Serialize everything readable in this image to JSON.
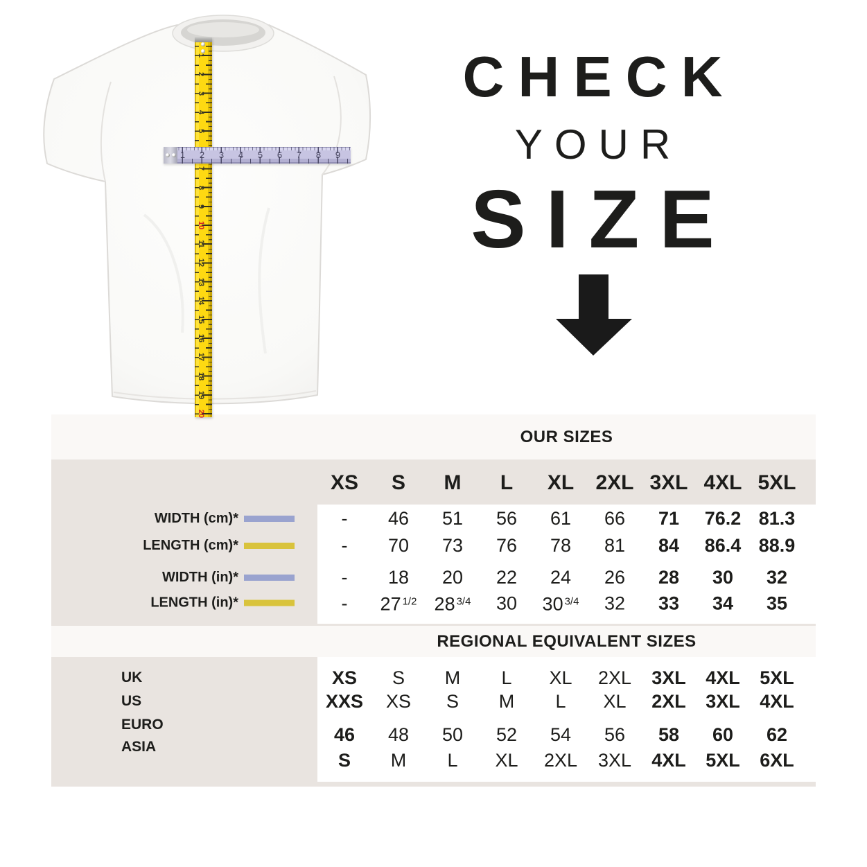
{
  "colors": {
    "text": "#1d1d1b",
    "panel_beige": "#e9e4e0",
    "band_light": "#faf8f6",
    "white": "#ffffff",
    "swatch_lavender": "#9aa3cf",
    "swatch_yellow": "#d9c33c",
    "tape_yellow": "#fed912",
    "ruler_lavender": "#c7c4e2",
    "tape_red_number": "#d42b26",
    "arrow_black": "#1a1a1a"
  },
  "headline": {
    "line1": "CHECK",
    "line2": "YOUR",
    "line3": "SIZE"
  },
  "tshirt_diagram": {
    "vertical_tape": {
      "numbers": [
        "1",
        "2",
        "3",
        "4",
        "5",
        "6",
        "7",
        "8",
        "9",
        "10",
        "11",
        "12",
        "13",
        "14",
        "15",
        "16",
        "17",
        "18",
        "19",
        "20"
      ],
      "red_numbers": [
        "10",
        "20"
      ]
    },
    "horizontal_ruler": {
      "numbers": [
        "1",
        "2",
        "3",
        "4",
        "5",
        "6",
        "7",
        "8",
        "9"
      ]
    }
  },
  "size_table": {
    "our_sizes_title": "OUR SIZES",
    "regional_title": "REGIONAL EQUIVALENT SIZES",
    "columns": [
      "XS",
      "S",
      "M",
      "L",
      "XL",
      "2XL",
      "3XL",
      "4XL",
      "5XL"
    ],
    "measurement_rows": [
      {
        "label": "WIDTH (cm)*",
        "swatch_color": "#9aa3cf",
        "values": [
          "-",
          "46",
          "51",
          "56",
          "61",
          "66",
          "71",
          "76.2",
          "81.3"
        ]
      },
      {
        "label": "LENGTH (cm)*",
        "swatch_color": "#d9c33c",
        "values": [
          "-",
          "70",
          "73",
          "76",
          "78",
          "81",
          "84",
          "86.4",
          "88.9"
        ]
      },
      {
        "label": "WIDTH (in)*",
        "swatch_color": "#9aa3cf",
        "values": [
          "-",
          "18",
          "20",
          "22",
          "24",
          "26",
          "28",
          "30",
          "32"
        ]
      },
      {
        "label": "LENGTH (in)*",
        "swatch_color": "#d9c33c",
        "values": [
          "-",
          "27 1/2",
          "28 3/4",
          "30",
          "30 3/4",
          "32",
          "33",
          "34",
          "35"
        ]
      }
    ],
    "regional_rows": [
      {
        "label": "UK",
        "values": [
          "XS",
          "S",
          "M",
          "L",
          "XL",
          "2XL",
          "3XL",
          "4XL",
          "5XL"
        ]
      },
      {
        "label": "US",
        "values": [
          "XXS",
          "XS",
          "S",
          "M",
          "L",
          "XL",
          "2XL",
          "3XL",
          "4XL"
        ]
      },
      {
        "label": "EURO",
        "values": [
          "46",
          "48",
          "50",
          "52",
          "54",
          "56",
          "58",
          "60",
          "62"
        ]
      },
      {
        "label": "ASIA",
        "values": [
          "S",
          "M",
          "L",
          "XL",
          "2XL",
          "3XL",
          "4XL",
          "5XL",
          "6XL"
        ]
      }
    ]
  }
}
